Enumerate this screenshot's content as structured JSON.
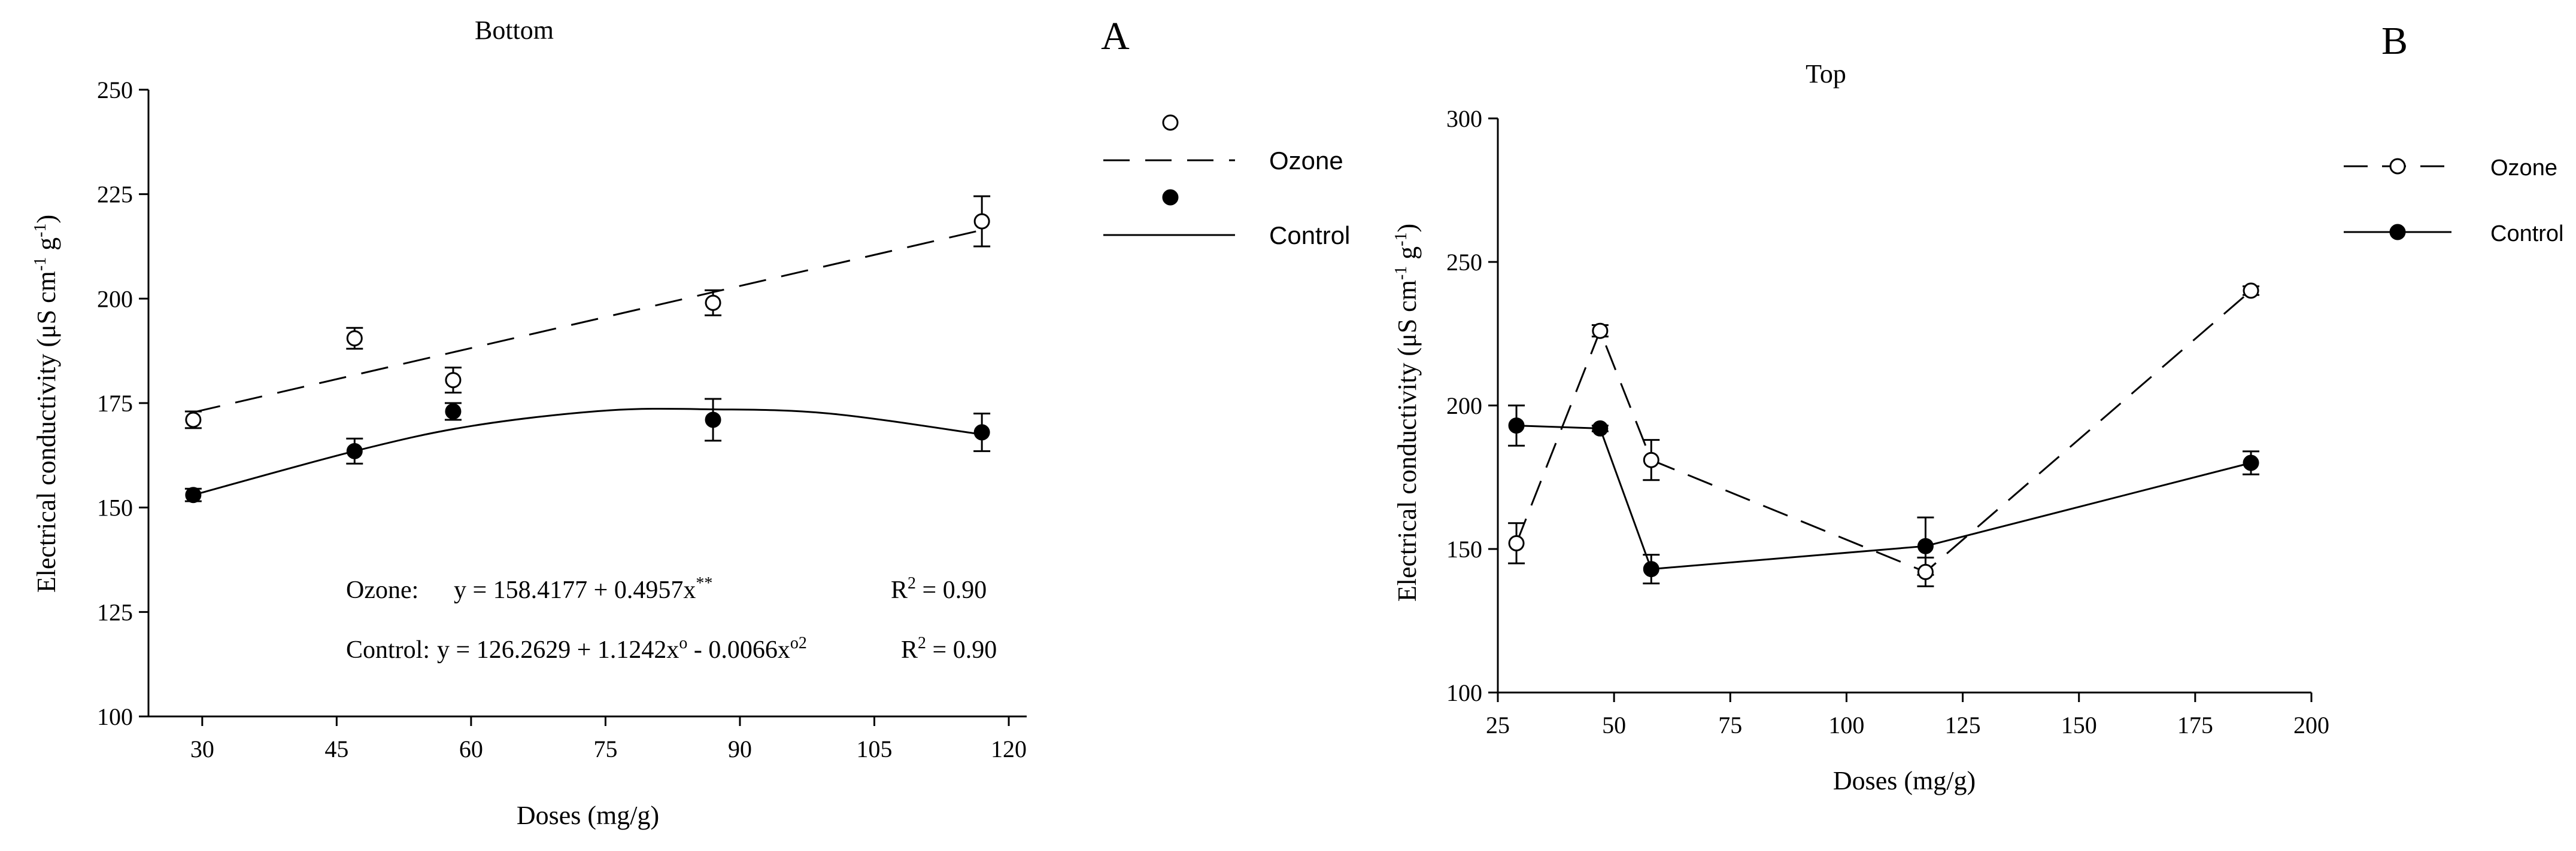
{
  "chart_data": [
    {
      "type": "scatter",
      "panel_label": "A",
      "title": "Bottom",
      "xlabel": "Doses (mg/g)",
      "ylabel_main": "Electrical conductivity (μS cm",
      "ylabel_g": " g",
      "ylabel_close": ")",
      "ylabel_exp": "-1",
      "xlim": [
        24,
        122
      ],
      "ylim": [
        100,
        250
      ],
      "xticks": [
        30,
        45,
        60,
        75,
        90,
        105,
        120
      ],
      "yticks": [
        100,
        125,
        150,
        175,
        200,
        225,
        250
      ],
      "series": [
        {
          "name": "Ozone",
          "marker": "open",
          "line": "dashed",
          "x": [
            29,
            47,
            58,
            87,
            117
          ],
          "y": [
            171,
            190.5,
            180.5,
            199,
            218.5
          ],
          "err": [
            2,
            2.5,
            3,
            3,
            6
          ],
          "fit": {
            "kind": "linear",
            "a": 158.4177,
            "b": 0.4957,
            "x_range": [
              29,
              117
            ]
          }
        },
        {
          "name": "Control",
          "marker": "filled",
          "line": "solid",
          "x": [
            29,
            47,
            58,
            87,
            117
          ],
          "y": [
            153,
            163.5,
            173,
            171,
            168
          ],
          "err": [
            1.5,
            3,
            2,
            5,
            4.5
          ],
          "fit": {
            "kind": "quadratic",
            "points": [
              [
                29,
                153
              ],
              [
                47,
                163.5
              ],
              [
                60,
                169.5
              ],
              [
                75,
                173.2
              ],
              [
                87,
                173.5
              ],
              [
                100,
                172.5
              ],
              [
                117,
                167.5
              ]
            ]
          }
        }
      ],
      "legend": [
        {
          "name": "Ozone",
          "marker": "open",
          "line": "dashed"
        },
        {
          "name": "Control",
          "marker": "filled",
          "line": "solid"
        }
      ],
      "annotations": {
        "ozone_label": "Ozone:",
        "ozone_eq": "y = 158.4177 + 0.4957x",
        "ozone_sup": "**",
        "ozone_r2_label": "R",
        "ozone_r2_sup": "2",
        "ozone_r2_value": " = 0.90",
        "control_label": "Control:",
        "control_eq_a": "y = 126.2629 + 1.1242x",
        "control_sup_a": "o",
        "control_eq_b": " - 0.0066x",
        "control_sup_b": "o2",
        "control_r2_label": "R",
        "control_r2_sup": "2",
        "control_r2_value": " = 0.90"
      }
    },
    {
      "type": "line",
      "panel_label": "B",
      "title": "Top",
      "xlabel": "Doses (mg/g)",
      "ylabel_main": "Electrical conductivity (μS cm",
      "ylabel_g": " g",
      "ylabel_close": ")",
      "ylabel_exp": "-1",
      "xlim": [
        25,
        200
      ],
      "ylim": [
        100,
        300
      ],
      "xticks": [
        25,
        50,
        75,
        100,
        125,
        150,
        175,
        200
      ],
      "yticks": [
        100,
        150,
        200,
        250,
        300
      ],
      "series": [
        {
          "name": "Ozone",
          "marker": "open",
          "line": "dashed",
          "x": [
            29,
            47,
            58,
            117,
            187
          ],
          "y": [
            152,
            226,
            181,
            142,
            240
          ],
          "err": [
            7,
            2,
            7,
            5,
            1.5
          ]
        },
        {
          "name": "Control",
          "marker": "filled",
          "line": "solid",
          "x": [
            29,
            47,
            58,
            117,
            187
          ],
          "y": [
            193,
            192,
            143,
            151,
            180
          ],
          "err": [
            7,
            1,
            5,
            10,
            4
          ]
        }
      ],
      "legend": [
        {
          "name": "Ozone",
          "marker": "open",
          "line": "dashed"
        },
        {
          "name": "Control",
          "marker": "filled",
          "line": "solid"
        }
      ]
    }
  ]
}
